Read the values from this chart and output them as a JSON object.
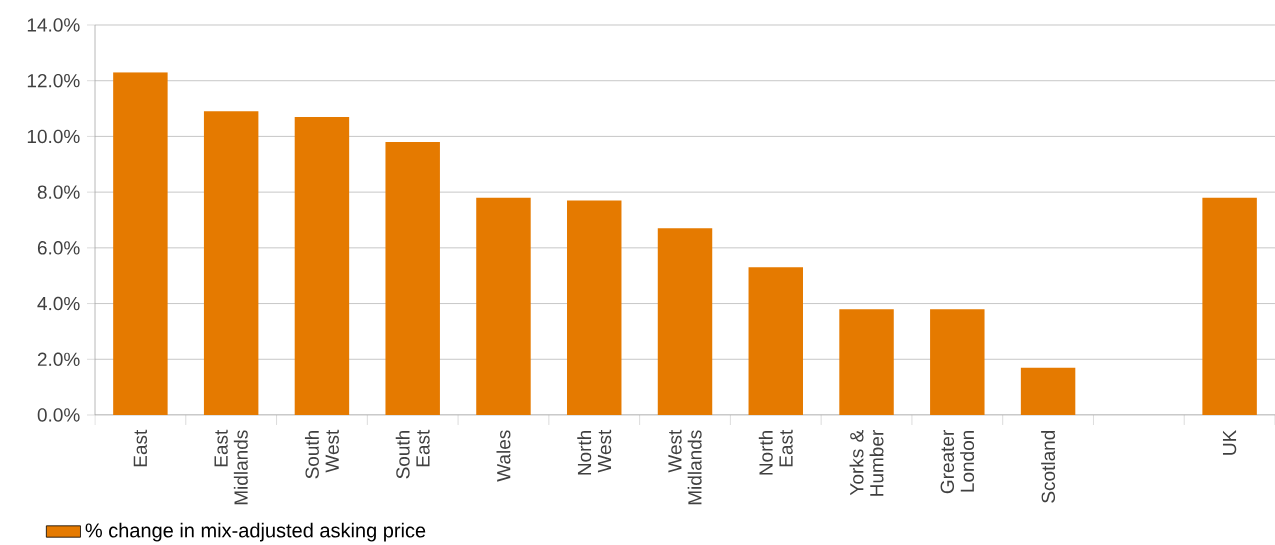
{
  "chart_data": {
    "type": "bar",
    "categories": [
      "East",
      "East Midlands",
      "South West",
      "South East",
      "Wales",
      "North West",
      "West Midlands",
      "North East",
      "Yorks & Humber",
      "Greater London",
      "Scotland",
      null,
      "UK"
    ],
    "series": [
      {
        "name": "% change in mix-adjusted asking price",
        "color": "#e57a00",
        "values": [
          12.3,
          10.9,
          10.7,
          9.8,
          7.8,
          7.7,
          6.7,
          5.3,
          3.8,
          3.8,
          1.7,
          null,
          7.8
        ]
      }
    ],
    "ylim": [
      0,
      14
    ],
    "yticks": [
      {
        "value": 0,
        "label": "0.0%"
      },
      {
        "value": 2,
        "label": "2.0%"
      },
      {
        "value": 4,
        "label": "4.0%"
      },
      {
        "value": 6,
        "label": "6.0%"
      },
      {
        "value": 8,
        "label": "8.0%"
      },
      {
        "value": 10,
        "label": "10.0%"
      },
      {
        "value": 12,
        "label": "12.0%"
      },
      {
        "value": 14,
        "label": "14.0%"
      }
    ],
    "grid": "y",
    "legend": "bottom left"
  }
}
